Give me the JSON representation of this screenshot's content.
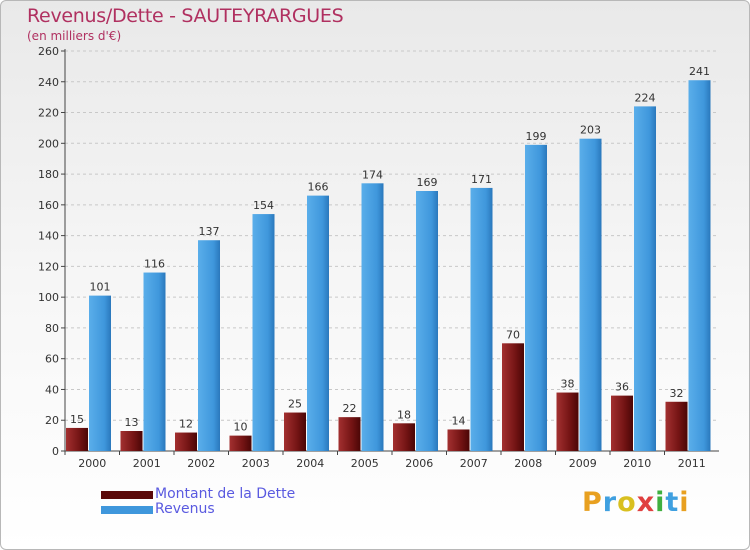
{
  "header": {
    "title": "Revenus/Dette - SAUTEYRARGUES",
    "subtitle": "(en milliers d'€)"
  },
  "chart_data": {
    "type": "bar",
    "title": "Revenus/Dette - SAUTEYRARGUES",
    "subtitle": "(en milliers d'€)",
    "xlabel": "",
    "ylabel": "",
    "categories": [
      "2000",
      "2001",
      "2002",
      "2003",
      "2004",
      "2005",
      "2006",
      "2007",
      "2008",
      "2009",
      "2010",
      "2011"
    ],
    "series": [
      {
        "name": "Montant de la Dette",
        "color": "#7a1818",
        "values": [
          15,
          13,
          12,
          10,
          25,
          22,
          18,
          14,
          70,
          38,
          36,
          32
        ]
      },
      {
        "name": "Revenus",
        "color": "#3f97dc",
        "values": [
          101,
          116,
          137,
          154,
          166,
          174,
          169,
          171,
          199,
          203,
          224,
          241
        ]
      }
    ],
    "ylim": [
      0,
      260
    ],
    "yticks": [
      0,
      20,
      40,
      60,
      80,
      100,
      120,
      140,
      160,
      180,
      200,
      220,
      240,
      260
    ],
    "grid": true,
    "legend_position": "bottom-left",
    "data_labels": true
  },
  "legend": {
    "items": [
      {
        "label": "Montant de la Dette",
        "color": "#5a0808"
      },
      {
        "label": "Revenus",
        "color": "#3f97dc"
      }
    ]
  },
  "logo": {
    "letters": [
      "P",
      "r",
      "o",
      "x",
      "i",
      "t",
      "i"
    ],
    "colors": [
      "#e8a020",
      "#3fa0e0",
      "#d9c020",
      "#e04040",
      "#40b040",
      "#3fa0e0",
      "#e8a020"
    ]
  }
}
